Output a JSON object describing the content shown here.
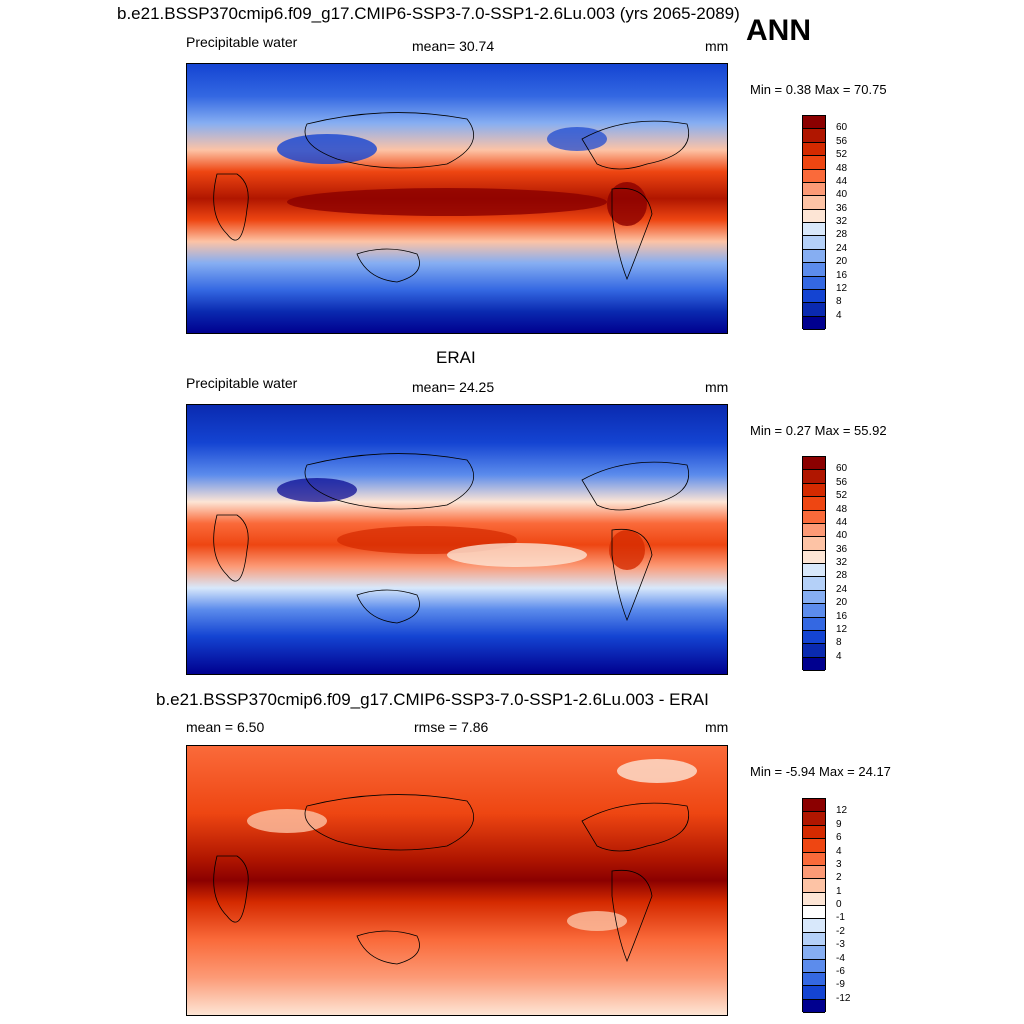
{
  "header": {
    "title": "b.e21.BSSP370cmip6.f09_g17.CMIP6-SSP3-7.0-SSP1-2.6Lu.003 (yrs 2065-2089)",
    "season": "ANN"
  },
  "panels": [
    {
      "id": "model",
      "title": "",
      "left_label": "Precipitable water",
      "center_label": "mean=  30.74",
      "units": "mm",
      "minmax": "Min =   0.38 Max =  70.75",
      "colorbar": {
        "levels": [
          "60",
          "56",
          "52",
          "48",
          "44",
          "40",
          "36",
          "32",
          "28",
          "24",
          "20",
          "16",
          "12",
          "8",
          "4"
        ],
        "colors": [
          "#8b0000",
          "#b01600",
          "#d42a00",
          "#ee4612",
          "#fa6a3a",
          "#fc9a76",
          "#fdc3a5",
          "#fde5d5",
          "#d8e8fb",
          "#b4d0f8",
          "#86aef2",
          "#5c8cec",
          "#3468e2",
          "#1444d2",
          "#0a2ab0",
          "#00008f"
        ]
      }
    },
    {
      "id": "obs",
      "title": "ERAI",
      "left_label": "Precipitable water",
      "center_label": "mean=  24.25",
      "units": "mm",
      "minmax": "Min =   0.27 Max =  55.92",
      "colorbar": {
        "levels": [
          "60",
          "56",
          "52",
          "48",
          "44",
          "40",
          "36",
          "32",
          "28",
          "24",
          "20",
          "16",
          "12",
          "8",
          "4"
        ],
        "colors": [
          "#8b0000",
          "#b01600",
          "#d42a00",
          "#ee4612",
          "#fa6a3a",
          "#fc9a76",
          "#fdc3a5",
          "#fde5d5",
          "#d8e8fb",
          "#b4d0f8",
          "#86aef2",
          "#5c8cec",
          "#3468e2",
          "#1444d2",
          "#0a2ab0",
          "#00008f"
        ]
      }
    },
    {
      "id": "diff",
      "title": "b.e21.BSSP370cmip6.f09_g17.CMIP6-SSP3-7.0-SSP1-2.6Lu.003 - ERAI",
      "left_label": "mean =   6.50",
      "center_label": "rmse =   7.86",
      "units": "mm",
      "minmax": "Min =  -5.94 Max =  24.17",
      "colorbar": {
        "levels": [
          "12",
          "9",
          "6",
          "4",
          "3",
          "2",
          "1",
          "0",
          "-1",
          "-2",
          "-3",
          "-4",
          "-6",
          "-9",
          "-12"
        ],
        "colors": [
          "#8b0000",
          "#b01600",
          "#d42a00",
          "#ee4612",
          "#fa6a3a",
          "#fc9a76",
          "#fdc3a5",
          "#fde5d5",
          "#ffffff",
          "#d8e8fb",
          "#b4d0f8",
          "#86aef2",
          "#5c8cec",
          "#3468e2",
          "#1444d2",
          "#00008f"
        ]
      }
    }
  ]
}
